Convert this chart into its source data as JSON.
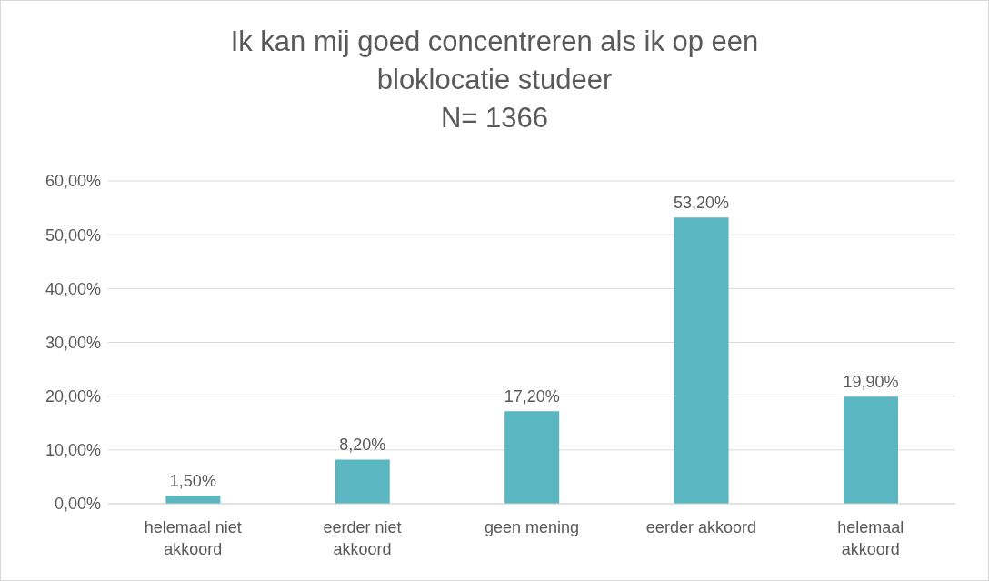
{
  "chart_data": {
    "type": "bar",
    "title": "Ik kan mij goed concentreren als ik op een bloklocatie studeer",
    "subtitle": "N= 1366",
    "categories": [
      "helemaal niet akkoord",
      "eerder niet akkoord",
      "geen mening",
      "eerder akkoord",
      "helemaal akkoord"
    ],
    "values": [
      1.5,
      8.2,
      17.2,
      53.2,
      19.9
    ],
    "value_labels": [
      "1,50%",
      "8,20%",
      "17,20%",
      "53,20%",
      "19,90%"
    ],
    "color": "#5ab6c0",
    "ylim": [
      0,
      60
    ],
    "yticks": [
      {
        "value": 0,
        "label": "0,00%"
      },
      {
        "value": 10,
        "label": "10,00%"
      },
      {
        "value": 20,
        "label": "20,00%"
      },
      {
        "value": 30,
        "label": "30,00%"
      },
      {
        "value": 40,
        "label": "40,00%"
      },
      {
        "value": 50,
        "label": "50,00%"
      },
      {
        "value": 60,
        "label": "60,00%"
      }
    ],
    "grid": "y",
    "legend": false
  }
}
